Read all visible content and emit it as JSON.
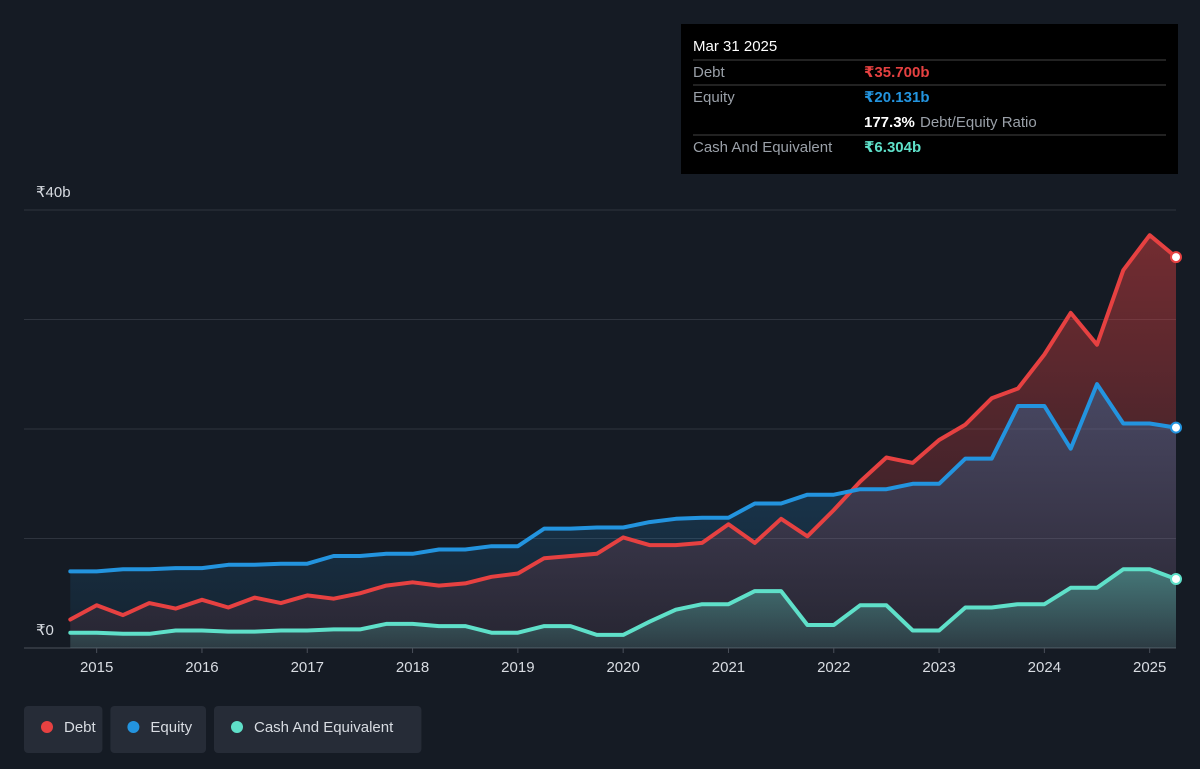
{
  "chart_data": {
    "type": "line",
    "x": [
      2014.75,
      2015,
      2015.25,
      2015.5,
      2015.75,
      2016,
      2016.25,
      2016.5,
      2016.75,
      2017,
      2017.25,
      2017.5,
      2017.75,
      2018,
      2018.25,
      2018.5,
      2018.75,
      2019,
      2019.25,
      2019.5,
      2019.75,
      2020,
      2020.25,
      2020.5,
      2020.75,
      2021,
      2021.25,
      2021.5,
      2021.75,
      2022,
      2022.25,
      2022.5,
      2022.75,
      2023,
      2023.25,
      2023.5,
      2023.75,
      2024,
      2024.25,
      2024.5,
      2024.75,
      2025,
      2025.25
    ],
    "series": [
      {
        "name": "Debt",
        "color": "#e64141",
        "values": [
          2.6,
          3.9,
          3.0,
          4.1,
          3.6,
          4.4,
          3.7,
          4.6,
          4.1,
          4.8,
          4.5,
          5.0,
          5.7,
          6.0,
          5.7,
          5.9,
          6.5,
          6.8,
          8.2,
          8.4,
          8.6,
          10.1,
          9.4,
          9.4,
          9.6,
          11.3,
          9.6,
          11.8,
          10.2,
          12.6,
          15.2,
          17.4,
          16.9,
          19.0,
          20.4,
          22.8,
          23.7,
          26.8,
          30.6,
          27.7,
          34.5,
          37.7,
          35.7
        ]
      },
      {
        "name": "Equity",
        "color": "#2394df",
        "values": [
          7.0,
          7.0,
          7.2,
          7.2,
          7.3,
          7.3,
          7.6,
          7.6,
          7.7,
          7.7,
          8.4,
          8.4,
          8.6,
          8.6,
          9.0,
          9.0,
          9.3,
          9.3,
          10.9,
          10.9,
          11.0,
          11.0,
          11.5,
          11.8,
          11.9,
          11.9,
          13.2,
          13.2,
          14.0,
          14.0,
          14.5,
          14.5,
          15.0,
          15.0,
          17.3,
          17.3,
          22.1,
          22.1,
          18.2,
          24.1,
          20.5,
          20.5,
          20.131
        ]
      },
      {
        "name": "Cash And Equivalent",
        "color": "#5fe0c9",
        "values": [
          1.4,
          1.4,
          1.3,
          1.3,
          1.6,
          1.6,
          1.5,
          1.5,
          1.6,
          1.6,
          1.7,
          1.7,
          2.2,
          2.2,
          2.0,
          2.0,
          1.4,
          1.4,
          2.0,
          2.0,
          1.2,
          1.2,
          2.4,
          3.5,
          4.0,
          4.0,
          5.2,
          5.2,
          2.1,
          2.1,
          3.9,
          3.9,
          1.6,
          1.6,
          3.7,
          3.7,
          4.0,
          4.0,
          5.5,
          5.5,
          7.2,
          7.2,
          6.304
        ]
      }
    ],
    "xlim": [
      2014.31,
      2025.25
    ],
    "xticks": [
      2015,
      2016,
      2017,
      2018,
      2019,
      2020,
      2021,
      2022,
      2023,
      2024,
      2025
    ],
    "ylim": [
      0,
      40
    ],
    "yticks": [
      {
        "value": 40,
        "label": "₹40b"
      },
      {
        "value": 0,
        "label": "₹0"
      }
    ],
    "ygrid": [
      0,
      10,
      20,
      30,
      40
    ],
    "tooltip": {
      "date": "Mar 31 2025",
      "rows": [
        {
          "label": "Debt",
          "value": "₹35.700b"
        },
        {
          "label": "Equity",
          "value": "₹20.131b"
        }
      ],
      "ratio": {
        "value": "177.3%",
        "label": "Debt/Equity Ratio"
      },
      "cash": {
        "label": "Cash And Equivalent",
        "value": "₹6.304b"
      }
    }
  }
}
